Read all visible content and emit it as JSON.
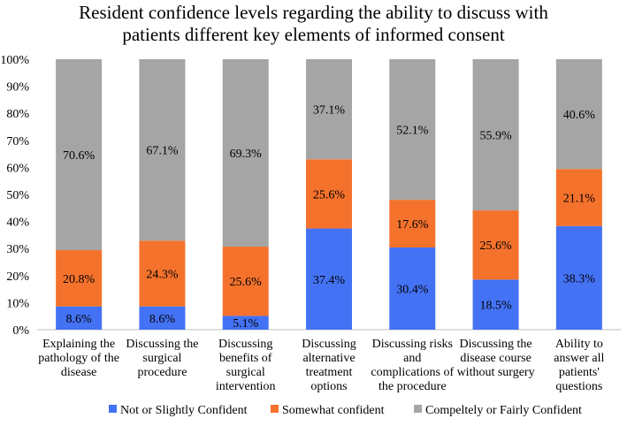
{
  "chart_data": {
    "type": "bar",
    "stacked": true,
    "percent_stacked": true,
    "title_lines": [
      "Resident confidence levels regarding the ability to discuss with",
      "patients different key elements of informed consent"
    ],
    "xlabel": "",
    "ylabel": "",
    "ylim": [
      0,
      100
    ],
    "y_ticks": [
      "0%",
      "10%",
      "20%",
      "30%",
      "40%",
      "50%",
      "60%",
      "70%",
      "80%",
      "90%",
      "100%"
    ],
    "grid": false,
    "legend_position": "bottom",
    "categories": [
      [
        "Explaining the",
        "pathology of the",
        "disease"
      ],
      [
        "Discussing the",
        "surgical",
        "procedure"
      ],
      [
        "Discussing",
        "benefits of",
        "surgical",
        "intervention"
      ],
      [
        "Discussing",
        "alternative",
        "treatment",
        "options"
      ],
      [
        "Discussing risks",
        "and",
        "complications of",
        "the procedure"
      ],
      [
        "Discussing the",
        "disease course",
        "without surgery"
      ],
      [
        "Ability to",
        "answer all",
        "patients'",
        "questions"
      ]
    ],
    "series": [
      {
        "name": "Not or Slightly Confident",
        "color": "#4472F4",
        "values": [
          8.6,
          8.6,
          5.1,
          37.4,
          30.4,
          18.5,
          38.3
        ],
        "labels": [
          "8.6%",
          "8.6%",
          "5.1%",
          "37.4%",
          "30.4%",
          "18.5%",
          "38.3%"
        ]
      },
      {
        "name": "Somewhat confident",
        "color": "#F4722C",
        "values": [
          20.8,
          24.3,
          25.6,
          25.6,
          17.6,
          25.6,
          21.1
        ],
        "labels": [
          "20.8%",
          "24.3%",
          "25.6%",
          "25.6%",
          "17.6%",
          "25.6%",
          "21.1%"
        ]
      },
      {
        "name": "Compeltely or Fairly Confident",
        "color": "#A5A5A5",
        "values": [
          70.6,
          67.1,
          69.3,
          37.1,
          52.1,
          55.9,
          40.6
        ],
        "labels": [
          "70.6%",
          "67.1%",
          "69.3%",
          "37.1%",
          "52.1%",
          "55.9%",
          "40.6%"
        ]
      }
    ]
  }
}
